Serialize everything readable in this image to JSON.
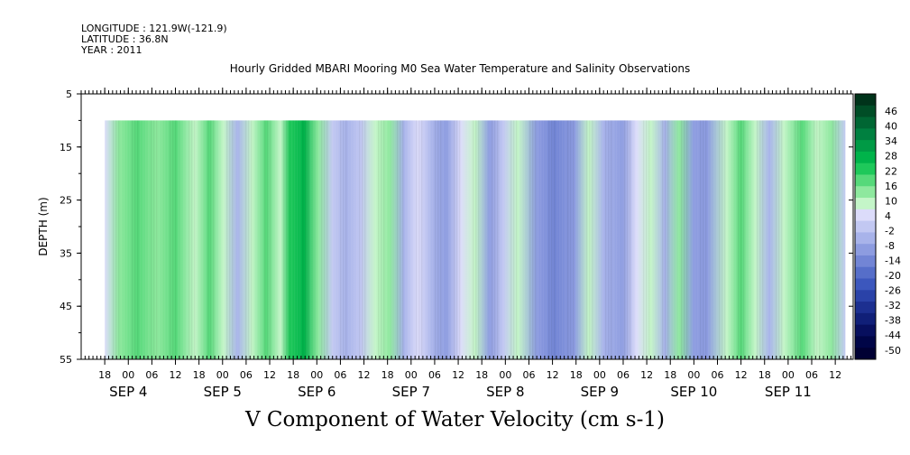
{
  "header": {
    "longitude": "LONGITUDE : 121.9W(-121.9)",
    "latitude": "LATITUDE : 36.8N",
    "year": "YEAR : 2011"
  },
  "chart_data": {
    "type": "heatmap",
    "title": "Hourly Gridded MBARI Mooring M0 Sea Water Temperature and Salinity Observations",
    "xlabel": "V Component of Water Velocity (cm s-1)",
    "ylabel": "DEPTH (m)",
    "ylim": [
      5,
      55
    ],
    "y_reversed": true,
    "y_ticks": [
      5,
      15,
      25,
      35,
      45,
      55
    ],
    "data_depth_range": [
      10,
      55
    ],
    "x_hour_labels": [
      "18",
      "00",
      "06",
      "12",
      "18",
      "00",
      "06",
      "12",
      "18",
      "00",
      "06",
      "12",
      "18",
      "00",
      "06",
      "12",
      "18",
      "00",
      "06",
      "12",
      "18",
      "00",
      "06",
      "12",
      "18",
      "00",
      "06",
      "12",
      "18",
      "00",
      "06",
      "12"
    ],
    "x_day_labels": [
      "SEP  4",
      "SEP  5",
      "SEP  6",
      "SEP  7",
      "SEP  8",
      "SEP  9",
      "SEP 10",
      "SEP 11"
    ],
    "colorbar": {
      "labels": [
        "46",
        "40",
        "34",
        "28",
        "22",
        "16",
        "10",
        "4",
        "-2",
        "-8",
        "-14",
        "-20",
        "-26",
        "-32",
        "-38",
        "-44",
        "-50"
      ],
      "colors": [
        "#00331a",
        "#004d26",
        "#006633",
        "#008040",
        "#009a45",
        "#00b34a",
        "#1ec85a",
        "#56d97a",
        "#8ee89e",
        "#c4f5c8",
        "#dcdcfa",
        "#c2c8f2",
        "#a8b3ea",
        "#8d9ce0",
        "#7285d5",
        "#566ec9",
        "#3c57bd",
        "#2a42a8",
        "#1c2f90",
        "#101f78",
        "#070f5e",
        "#000547",
        "#000033"
      ]
    },
    "time_bands": [
      {
        "day": 3.75,
        "v": 4
      },
      {
        "day": 3.9,
        "v": 12
      },
      {
        "day": 4.1,
        "v": 18
      },
      {
        "day": 4.3,
        "v": 14
      },
      {
        "day": 4.5,
        "v": 20
      },
      {
        "day": 4.7,
        "v": 8
      },
      {
        "day": 4.85,
        "v": 16
      },
      {
        "day": 5.0,
        "v": 10
      },
      {
        "day": 5.15,
        "v": -6
      },
      {
        "day": 5.3,
        "v": 6
      },
      {
        "day": 5.45,
        "v": 18
      },
      {
        "day": 5.6,
        "v": 8
      },
      {
        "day": 5.7,
        "v": 22
      },
      {
        "day": 5.85,
        "v": 26
      },
      {
        "day": 6.0,
        "v": 14
      },
      {
        "day": 6.15,
        "v": -2
      },
      {
        "day": 6.3,
        "v": -8
      },
      {
        "day": 6.45,
        "v": -4
      },
      {
        "day": 6.6,
        "v": 6
      },
      {
        "day": 6.75,
        "v": 12
      },
      {
        "day": 6.9,
        "v": -6
      },
      {
        "day": 7.05,
        "v": 4
      },
      {
        "day": 7.2,
        "v": -8
      },
      {
        "day": 7.35,
        "v": -12
      },
      {
        "day": 7.5,
        "v": 2
      },
      {
        "day": 7.65,
        "v": 8
      },
      {
        "day": 7.8,
        "v": -10
      },
      {
        "day": 7.95,
        "v": -4
      },
      {
        "day": 8.1,
        "v": 8
      },
      {
        "day": 8.3,
        "v": -14
      },
      {
        "day": 8.5,
        "v": -18
      },
      {
        "day": 8.7,
        "v": -10
      },
      {
        "day": 8.85,
        "v": 6
      },
      {
        "day": 9.0,
        "v": -8
      },
      {
        "day": 9.2,
        "v": -12
      },
      {
        "day": 9.35,
        "v": 4
      },
      {
        "day": 9.5,
        "v": 10
      },
      {
        "day": 9.65,
        "v": -6
      },
      {
        "day": 9.8,
        "v": 14
      },
      {
        "day": 9.95,
        "v": -14
      },
      {
        "day": 10.1,
        "v": -10
      },
      {
        "day": 10.3,
        "v": 8
      },
      {
        "day": 10.45,
        "v": 16
      },
      {
        "day": 10.6,
        "v": 6
      },
      {
        "day": 10.75,
        "v": -8
      },
      {
        "day": 10.9,
        "v": 6
      },
      {
        "day": 11.1,
        "v": 18
      },
      {
        "day": 11.25,
        "v": 10
      },
      {
        "day": 11.4,
        "v": 14
      },
      {
        "day": 11.55,
        "v": -4
      }
    ]
  }
}
